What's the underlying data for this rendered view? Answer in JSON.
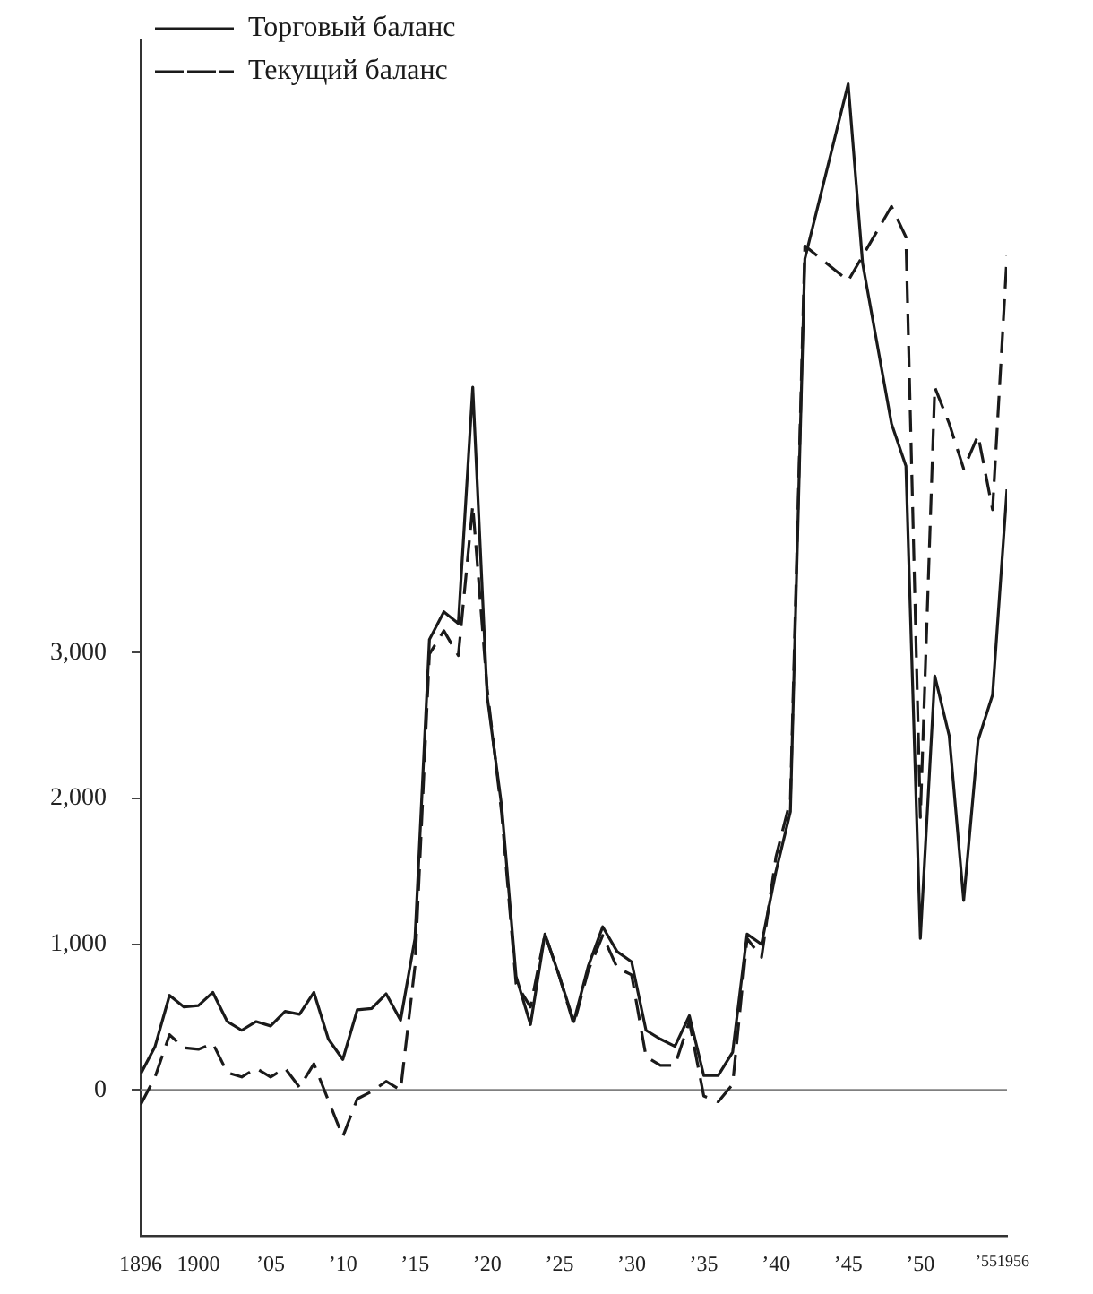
{
  "chart_data": {
    "type": "line",
    "x": [
      1896,
      1897,
      1898,
      1899,
      1900,
      1901,
      1902,
      1903,
      1904,
      1905,
      1906,
      1907,
      1908,
      1909,
      1910,
      1911,
      1912,
      1913,
      1914,
      1915,
      1916,
      1917,
      1918,
      1919,
      1920,
      1921,
      1922,
      1923,
      1924,
      1925,
      1926,
      1927,
      1928,
      1929,
      1930,
      1931,
      1932,
      1933,
      1934,
      1935,
      1936,
      1937,
      1938,
      1939,
      1940,
      1941,
      1942,
      1943,
      1944,
      1945,
      1946,
      1947,
      1948,
      1949,
      1950,
      1951,
      1952,
      1953,
      1954,
      1955,
      1956
    ],
    "series": [
      {
        "name": "Торговый баланс",
        "color": "#1a1a1a",
        "line_style": "solid",
        "values": [
          110,
          300,
          650,
          570,
          580,
          670,
          470,
          410,
          470,
          440,
          540,
          520,
          670,
          350,
          210,
          550,
          560,
          660,
          480,
          1040,
          3090,
          3280,
          3200,
          4820,
          2700,
          1950,
          780,
          450,
          1070,
          780,
          470,
          850,
          1120,
          950,
          880,
          410,
          350,
          300,
          510,
          100,
          100,
          260,
          1070,
          1000,
          1500,
          1910,
          5700,
          null,
          null,
          6900,
          5670,
          null,
          4570,
          4280,
          1040,
          2840,
          2430,
          1300,
          2400,
          2710,
          4120
        ]
      },
      {
        "name": "Текущий баланс",
        "color": "#1a1a1a",
        "line_style": "dashed",
        "values": [
          -100,
          90,
          380,
          290,
          280,
          320,
          120,
          90,
          150,
          90,
          150,
          20,
          180,
          -70,
          -320,
          -60,
          -10,
          60,
          0,
          850,
          2990,
          3150,
          2980,
          4010,
          2750,
          1900,
          730,
          570,
          1070,
          780,
          450,
          820,
          1060,
          840,
          790,
          230,
          170,
          170,
          470,
          -40,
          -80,
          40,
          1040,
          910,
          1600,
          1990,
          5790,
          null,
          null,
          5550,
          null,
          null,
          6060,
          5850,
          1870,
          4820,
          4570,
          4260,
          4490,
          3980,
          5720
        ]
      }
    ],
    "xlim": [
      1896,
      1956
    ],
    "xticks": [
      1896,
      1900,
      {
        "value": 1905,
        "label": "’05"
      },
      {
        "value": 1910,
        "label": "’10"
      },
      {
        "value": 1915,
        "label": "’15"
      },
      {
        "value": 1920,
        "label": "’20"
      },
      {
        "value": 1925,
        "label": "’25"
      },
      {
        "value": 1930,
        "label": "’30"
      },
      {
        "value": 1935,
        "label": "’35"
      },
      {
        "value": 1940,
        "label": "’40"
      },
      {
        "value": 1945,
        "label": "’45"
      },
      {
        "value": 1950,
        "label": "’50"
      },
      {
        "value": 1955,
        "label": "’55"
      },
      1956
    ],
    "ylim": [
      -1000,
      7200
    ],
    "yticks": [
      0,
      {
        "value": 1000,
        "label": "1,000"
      },
      {
        "value": 2000,
        "label": "2,000"
      },
      {
        "value": 3000,
        "label": "3,000"
      }
    ],
    "ref_lines": [
      {
        "axis": "y",
        "value": 0,
        "color": "#808080"
      }
    ],
    "grid": false,
    "legend": "top left",
    "marker": "none"
  }
}
